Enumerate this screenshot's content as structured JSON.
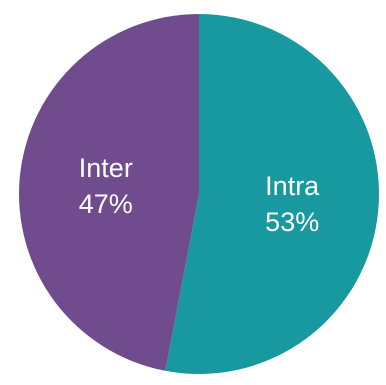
{
  "chart_data": {
    "type": "pie",
    "title": "",
    "categories": [
      "Intra",
      "Inter"
    ],
    "values": [
      53,
      47
    ],
    "value_labels": [
      "53%",
      "47%"
    ],
    "colors": [
      "#17999F",
      "#704C8F"
    ],
    "start": "12 o'clock",
    "direction": "clockwise",
    "legend": "none"
  }
}
